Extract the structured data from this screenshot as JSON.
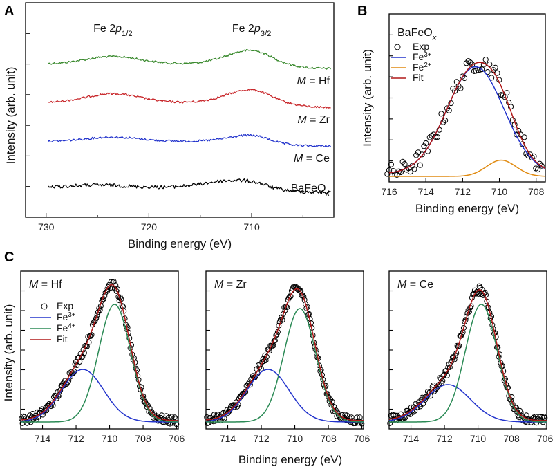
{
  "chart_data": [
    {
      "panel": "A",
      "type": "line",
      "xlabel": "Binding energy (eV)",
      "ylabel": "Intensity (arb. unit)",
      "xlim": [
        732,
        702
      ],
      "xticks": [
        730,
        720,
        710
      ],
      "peak_labels": [
        {
          "base": "Fe 2p",
          "sub": "1/2",
          "x": 723.5
        },
        {
          "base": "Fe 2p",
          "sub": "3/2",
          "x": 710
        }
      ],
      "series": [
        {
          "name": "M = Hf",
          "m_prefix": "M",
          "m_value": " = Hf",
          "color": "#3a8a2e",
          "offset": 0.0,
          "peaks": [
            [
              723.5,
              2.6,
              0.35
            ],
            [
              710,
              2.4,
              0.65
            ]
          ]
        },
        {
          "name": "M = Zr",
          "m_prefix": "M",
          "m_value": " = Zr",
          "color": "#c8262a",
          "offset": 1.05,
          "peaks": [
            [
              723.5,
              2.6,
              0.42
            ],
            [
              710,
              2.4,
              0.62
            ]
          ]
        },
        {
          "name": "M = Ce",
          "m_prefix": "M",
          "m_value": " = Ce",
          "color": "#2233cc",
          "offset": 2.05,
          "peaks": [
            [
              723.5,
              2.6,
              0.2
            ],
            [
              710,
              2.2,
              0.3
            ]
          ]
        },
        {
          "name": "BaFeOx",
          "label_base": "BaFeO",
          "label_sub": "x",
          "color": "#000000",
          "offset": 3.0,
          "peaks": [
            [
              725,
              3.0,
              0.12
            ],
            [
              711.5,
              3.0,
              0.35
            ]
          ]
        }
      ]
    },
    {
      "panel": "B",
      "type": "scatter",
      "title": "BaFeO",
      "title_sub": "x",
      "xlabel": "Binding energy (eV)",
      "ylabel": "Intensity (arb. unit)",
      "xlim": [
        716,
        707.5
      ],
      "xticks": [
        716,
        714,
        712,
        710,
        708
      ],
      "legend": [
        {
          "label": "Exp",
          "sup": "",
          "kind": "marker"
        },
        {
          "label": "Fe",
          "sup": "3+",
          "color": "#2233cc"
        },
        {
          "label": "Fe",
          "sup": "2+",
          "color": "#e08a10"
        },
        {
          "label": "Fit",
          "sup": "",
          "color": "#b01818"
        }
      ],
      "components": [
        {
          "name": "Fe3+",
          "center": 711.3,
          "sigma": 1.55,
          "amp": 0.86
        },
        {
          "name": "Fe2+",
          "center": 709.9,
          "sigma": 0.8,
          "amp": 0.13
        }
      ]
    },
    {
      "panel": "C",
      "type": "scatter",
      "xlabel": "Binding energy (eV)",
      "ylabel": "Intensity (arb. unit)",
      "xlim": [
        715.3,
        705.9
      ],
      "xticks": [
        714,
        712,
        710,
        708,
        706
      ],
      "legend": [
        {
          "label": "Exp",
          "sup": "",
          "kind": "marker"
        },
        {
          "label": "Fe",
          "sup": "3+",
          "color": "#2233cc"
        },
        {
          "label": "Fe",
          "sup": "4+",
          "color": "#2a8a55"
        },
        {
          "label": "Fit",
          "sup": "",
          "color": "#b01818"
        }
      ],
      "subpanels": [
        {
          "m_prefix": "M",
          "m_value": " = Hf",
          "components": [
            {
              "name": "Fe3+",
              "center": 711.6,
              "sigma": 1.25,
              "amp": 0.38
            },
            {
              "name": "Fe4+",
              "center": 709.7,
              "sigma": 0.95,
              "amp": 0.85
            }
          ]
        },
        {
          "m_prefix": "M",
          "m_value": " = Zr",
          "components": [
            {
              "name": "Fe3+",
              "center": 711.6,
              "sigma": 1.25,
              "amp": 0.38
            },
            {
              "name": "Fe4+",
              "center": 709.7,
              "sigma": 0.95,
              "amp": 0.82
            }
          ]
        },
        {
          "m_prefix": "M",
          "m_value": " = Ce",
          "components": [
            {
              "name": "Fe3+",
              "center": 711.8,
              "sigma": 1.35,
              "amp": 0.27
            },
            {
              "name": "Fe4+",
              "center": 709.8,
              "sigma": 0.95,
              "amp": 0.85
            }
          ]
        }
      ]
    }
  ]
}
